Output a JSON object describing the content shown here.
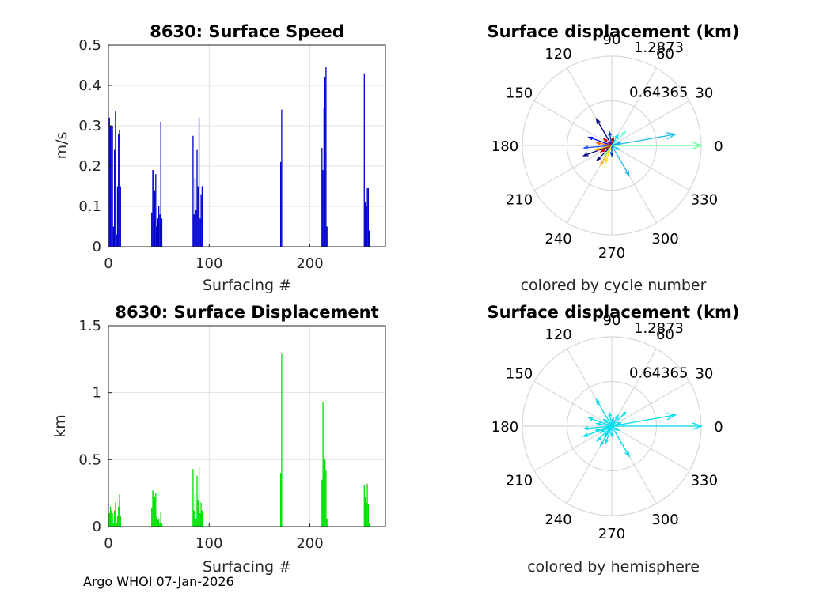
{
  "footer": "Argo WHOI 07-Jan-2026",
  "chart_data": [
    {
      "type": "bar",
      "title": "8630: Surface Speed",
      "xlabel": "Surfacing #",
      "ylabel": "m/s",
      "xlim": [
        0,
        275
      ],
      "ylim": [
        0,
        0.5
      ],
      "xticks": [
        0,
        100,
        200
      ],
      "yticks": [
        0,
        0.1,
        0.2,
        0.3,
        0.4,
        0.5
      ],
      "ytick_labels": [
        "0",
        "0.1",
        "0.2",
        "0.3",
        "0.4",
        "0.5"
      ],
      "color": "#0000cc",
      "x": [
        1,
        2,
        3,
        4,
        5,
        6,
        7,
        8,
        9,
        10,
        11,
        12,
        43,
        44,
        45,
        46,
        47,
        48,
        49,
        50,
        51,
        52,
        53,
        84,
        85,
        86,
        87,
        88,
        89,
        90,
        91,
        92,
        93,
        171,
        172,
        212,
        213,
        214,
        215,
        216,
        217,
        254,
        255,
        256,
        257,
        258,
        259
      ],
      "values": [
        0.32,
        0.3,
        0.3,
        0.3,
        0.05,
        0.24,
        0.335,
        0.03,
        0.15,
        0.28,
        0.29,
        0.15,
        0.085,
        0.19,
        0.19,
        0.14,
        0.18,
        0.05,
        0.07,
        0.1,
        0.08,
        0.31,
        0.07,
        0.275,
        0.08,
        0.17,
        0.09,
        0.24,
        0.15,
        0.32,
        0.07,
        0.13,
        0.15,
        0.21,
        0.34,
        0.245,
        0.19,
        0.345,
        0.42,
        0.445,
        0.05,
        0.43,
        0.11,
        0.1,
        0.145,
        0.145,
        0.04
      ]
    },
    {
      "type": "bar",
      "title": "8630: Surface Displacement",
      "xlabel": "Surfacing #",
      "ylabel": "km",
      "xlim": [
        0,
        275
      ],
      "ylim": [
        0,
        1.5
      ],
      "xticks": [
        0,
        100,
        200
      ],
      "yticks": [
        0,
        0.5,
        1,
        1.5
      ],
      "ytick_labels": [
        "0",
        "0.5",
        "1",
        "1.5"
      ],
      "color": "#00e000",
      "x": [
        1,
        2,
        3,
        4,
        5,
        6,
        7,
        8,
        9,
        10,
        11,
        12,
        43,
        44,
        45,
        46,
        47,
        48,
        49,
        50,
        51,
        52,
        53,
        84,
        85,
        86,
        87,
        88,
        89,
        90,
        91,
        92,
        93,
        171,
        172,
        212,
        213,
        214,
        215,
        216,
        217,
        254,
        255,
        256,
        257,
        258,
        259
      ],
      "values": [
        0.1,
        0.15,
        0.12,
        0.1,
        0.03,
        0.12,
        0.18,
        0.03,
        0.08,
        0.15,
        0.24,
        0.08,
        0.14,
        0.27,
        0.26,
        0.22,
        0.25,
        0.07,
        0.05,
        0.06,
        0.03,
        0.11,
        0.03,
        0.43,
        0.12,
        0.24,
        0.06,
        0.38,
        0.2,
        0.44,
        0.1,
        0.18,
        0.12,
        0.4,
        1.29,
        0.35,
        0.93,
        0.52,
        0.5,
        0.42,
        0.06,
        0.31,
        0.22,
        0.18,
        0.32,
        0.17,
        0.03
      ]
    },
    {
      "type": "polar-compass",
      "title": "Surface displacement (km)",
      "caption": "colored by cycle number",
      "rmax": 1.2873,
      "ring_labels": [
        "0.64365",
        "1.2873"
      ],
      "angle_labels": [
        "0",
        "30",
        "60",
        "90",
        "120",
        "150",
        "180",
        "210",
        "240",
        "270",
        "300",
        "330"
      ],
      "vectors": [
        {
          "angle": 0,
          "r": 1.29,
          "color": "#66ff99"
        },
        {
          "angle": 10,
          "r": 0.93,
          "color": "#22bbee"
        },
        {
          "angle": 300,
          "r": 0.5,
          "color": "#22bbee"
        },
        {
          "angle": 45,
          "r": 0.28,
          "color": "#66ffcc"
        },
        {
          "angle": 120,
          "r": 0.44,
          "color": "#000080"
        },
        {
          "angle": 200,
          "r": 0.43,
          "color": "#000080"
        },
        {
          "angle": 225,
          "r": 0.3,
          "color": "#000080"
        },
        {
          "angle": 160,
          "r": 0.35,
          "color": "#0000ff"
        },
        {
          "angle": 185,
          "r": 0.4,
          "color": "#2255ff"
        },
        {
          "angle": 240,
          "r": 0.32,
          "color": "#ffaa00"
        },
        {
          "angle": 250,
          "r": 0.26,
          "color": "#ffdd00"
        },
        {
          "angle": 195,
          "r": 0.24,
          "color": "#ffaa00"
        },
        {
          "angle": 170,
          "r": 0.22,
          "color": "#ff6600"
        },
        {
          "angle": 140,
          "r": 0.15,
          "color": "#cc0000"
        },
        {
          "angle": 80,
          "r": 0.12,
          "color": "#aa0000"
        },
        {
          "angle": 210,
          "r": 0.18,
          "color": "#cc0000"
        },
        {
          "angle": 20,
          "r": 0.14,
          "color": "#00aaff"
        },
        {
          "angle": 330,
          "r": 0.12,
          "color": "#00ccff"
        },
        {
          "angle": 100,
          "r": 0.2,
          "color": "#0033cc"
        },
        {
          "angle": 270,
          "r": 0.15,
          "color": "#0033cc"
        },
        {
          "angle": 60,
          "r": 0.18,
          "color": "#00ddee"
        },
        {
          "angle": 235,
          "r": 0.18,
          "color": "#99ff66"
        }
      ]
    },
    {
      "type": "polar-compass",
      "title": "Surface displacement (km)",
      "caption": "colored by hemisphere",
      "rmax": 1.2873,
      "ring_labels": [
        "0.64365",
        "1.2873"
      ],
      "angle_labels": [
        "0",
        "30",
        "60",
        "90",
        "120",
        "150",
        "180",
        "210",
        "240",
        "270",
        "300",
        "330"
      ],
      "vectors": [
        {
          "angle": 0,
          "r": 1.29,
          "color": "#00ddee"
        },
        {
          "angle": 10,
          "r": 0.93,
          "color": "#00ddee"
        },
        {
          "angle": 300,
          "r": 0.5,
          "color": "#00ddee"
        },
        {
          "angle": 45,
          "r": 0.28,
          "color": "#00ddee"
        },
        {
          "angle": 120,
          "r": 0.44,
          "color": "#00ddee"
        },
        {
          "angle": 200,
          "r": 0.43,
          "color": "#00ddee"
        },
        {
          "angle": 225,
          "r": 0.3,
          "color": "#00ddee"
        },
        {
          "angle": 160,
          "r": 0.35,
          "color": "#00ddee"
        },
        {
          "angle": 185,
          "r": 0.4,
          "color": "#00ddee"
        },
        {
          "angle": 240,
          "r": 0.32,
          "color": "#00ddee"
        },
        {
          "angle": 250,
          "r": 0.26,
          "color": "#00ddee"
        },
        {
          "angle": 195,
          "r": 0.24,
          "color": "#00ddee"
        },
        {
          "angle": 170,
          "r": 0.22,
          "color": "#00ddee"
        },
        {
          "angle": 140,
          "r": 0.15,
          "color": "#00ddee"
        },
        {
          "angle": 80,
          "r": 0.12,
          "color": "#00ddee"
        },
        {
          "angle": 210,
          "r": 0.18,
          "color": "#00ddee"
        },
        {
          "angle": 20,
          "r": 0.14,
          "color": "#00ddee"
        },
        {
          "angle": 330,
          "r": 0.12,
          "color": "#00ddee"
        },
        {
          "angle": 100,
          "r": 0.2,
          "color": "#00ddee"
        },
        {
          "angle": 270,
          "r": 0.15,
          "color": "#00ddee"
        },
        {
          "angle": 60,
          "r": 0.18,
          "color": "#00ddee"
        },
        {
          "angle": 235,
          "r": 0.18,
          "color": "#00ddee"
        }
      ]
    }
  ]
}
